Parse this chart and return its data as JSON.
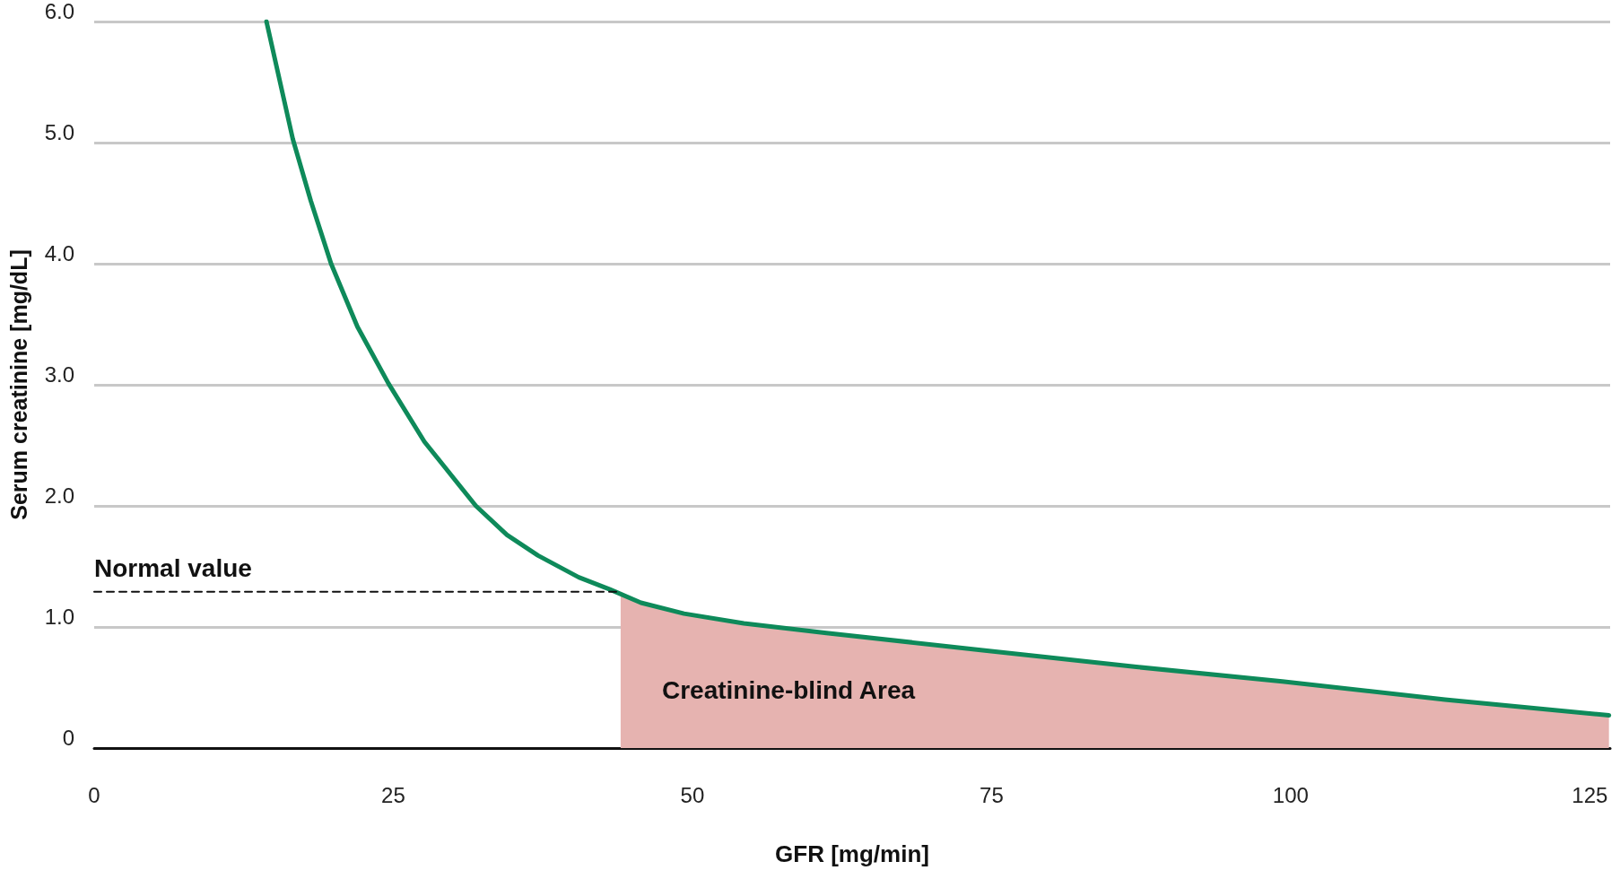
{
  "chart_data": {
    "type": "line",
    "xlabel": "GFR [mg/min]",
    "ylabel": "Serum creatinine [mg/dL]",
    "xlim": [
      0,
      126.7
    ],
    "xticks": [
      0,
      25,
      50,
      75,
      100,
      125
    ],
    "ylim": [
      0,
      6
    ],
    "yticks": [
      0,
      {
        "value": 1,
        "label": "1.0"
      },
      {
        "value": 2,
        "label": "2.0"
      },
      {
        "value": 3,
        "label": "3.0"
      },
      {
        "value": 4,
        "label": "4.0"
      },
      {
        "value": 5,
        "label": "5.0"
      },
      {
        "value": 6,
        "label": "6.0"
      }
    ],
    "grid": "y",
    "marker": "none",
    "series": [
      {
        "type": "area",
        "color": "#e6b3b0",
        "x": [
          44,
          45.7,
          49.3,
          54.3,
          61.2,
          74.1,
          87.1,
          99.3,
          112.9,
          126.6
        ],
        "values": [
          1.29,
          1.2,
          1.11,
          1.03,
          0.95,
          0.81,
          0.67,
          0.55,
          0.4,
          0.27
        ]
      },
      {
        "type": "line",
        "color": "#0e8a5a",
        "line_style": "solid",
        "x": [
          14.4,
          16.6,
          18.1,
          19.8,
          22,
          24.6,
          27.6,
          29.3,
          31.9,
          34.5,
          37.1,
          40.5,
          43.1,
          45.7,
          49.3,
          54.3,
          61.2,
          74.1,
          87.1,
          99.3,
          112.9,
          126.6
        ],
        "values": [
          6.0,
          5.03,
          4.52,
          4.0,
          3.48,
          3.01,
          2.53,
          2.32,
          2.0,
          1.76,
          1.59,
          1.41,
          1.31,
          1.2,
          1.11,
          1.03,
          0.95,
          0.81,
          0.67,
          0.55,
          0.4,
          0.27
        ]
      },
      {
        "type": "line",
        "color": "#111111",
        "line_style": "dashed",
        "x": [
          0,
          44
        ],
        "values": [
          1.29,
          1.29
        ]
      }
    ],
    "annotations": [
      {
        "text": "Normal value",
        "x": 0,
        "y": 1.29
      },
      "Creatinine-blind Area"
    ]
  }
}
